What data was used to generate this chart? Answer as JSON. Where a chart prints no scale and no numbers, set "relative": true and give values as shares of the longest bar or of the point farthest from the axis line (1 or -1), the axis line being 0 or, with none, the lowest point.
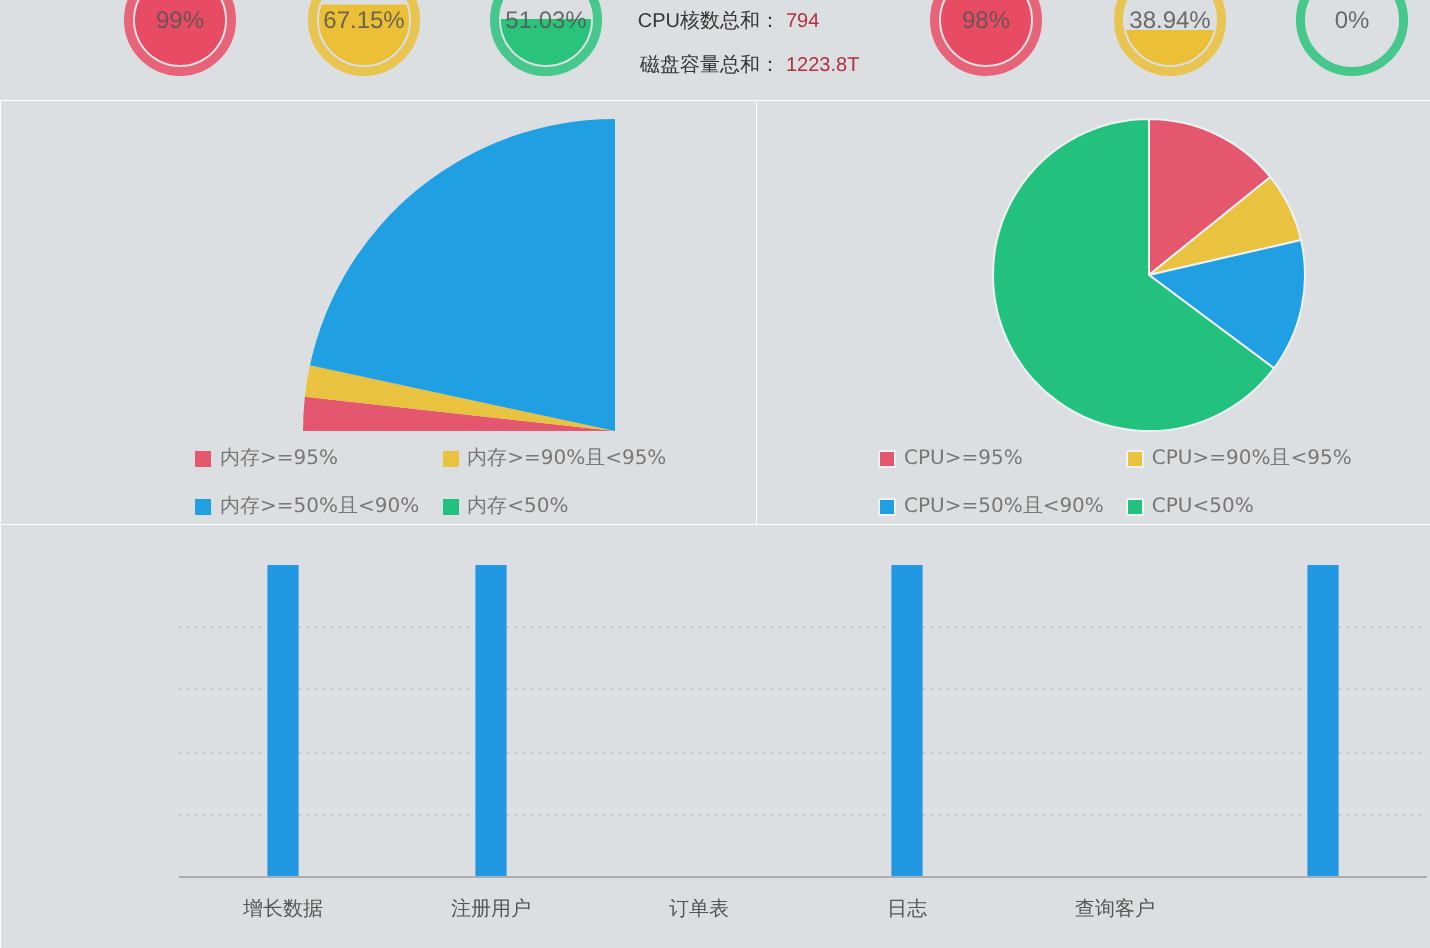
{
  "chart_data": [
    {
      "type": "other",
      "values": [
        99,
        67.15,
        51.03,
        98,
        38.94,
        0
      ],
      "colors": [
        "#e8435e",
        "#ebbd2c",
        "#20c175",
        "#e8435e",
        "#ebbd2c",
        "#20c175"
      ],
      "value_labels": [
        "99%",
        "67.15%",
        "51.03%",
        "98%",
        "38.94%",
        "0%"
      ],
      "annotations": [
        "CPU核数总和：",
        "794",
        "磁盘容量总和：",
        "1223.8T"
      ]
    },
    {
      "type": "pie",
      "categories": [
        "内存>=95%",
        "内存>=90%且<95%",
        "内存>=50%且<90%",
        "内存<50%"
      ],
      "values": [
        7,
        6.5,
        86.5,
        0
      ],
      "colors": [
        "#e5576f",
        "#e9c23f",
        "#20a0e2",
        "#22c17e"
      ],
      "legend": "bottom"
    },
    {
      "type": "pie",
      "categories": [
        "CPU>=95%",
        "CPU>=90%且<95%",
        "CPU>=50%且<90%",
        "CPU<50%"
      ],
      "values": [
        14.2,
        7.2,
        13.8,
        64.8
      ],
      "colors": [
        "#e5576f",
        "#e9c23f",
        "#20a0e2",
        "#22c17e"
      ],
      "legend": "bottom"
    },
    {
      "type": "bar",
      "categories": [
        "增长数据",
        "注册用户",
        "订单表",
        "日志",
        "查询客户",
        null
      ],
      "values": [
        1,
        1,
        0,
        1,
        0,
        1
      ],
      "relative": true,
      "color": "#2298e3",
      "grid": "y"
    }
  ]
}
